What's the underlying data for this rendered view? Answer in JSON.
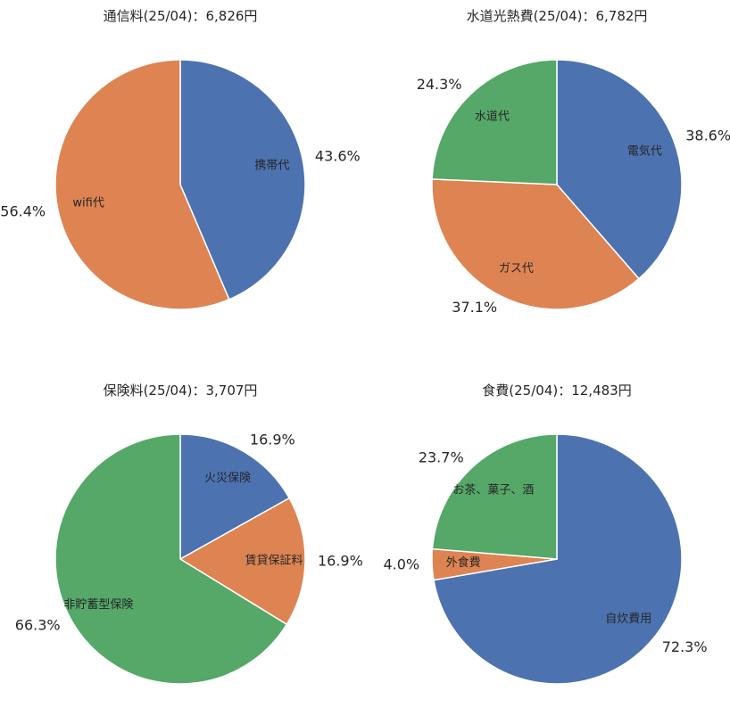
{
  "chart_data": [
    {
      "type": "pie",
      "title": "通信料(25/04)：6,826円",
      "categories": [
        "携帯代",
        "wifi代"
      ],
      "values": [
        43.6,
        56.4
      ],
      "percent_labels": [
        "43.6%",
        "56.4%"
      ],
      "colors": [
        "#4c72b0",
        "#dd8452"
      ]
    },
    {
      "type": "pie",
      "title": "水道光熱費(25/04)：6,782円",
      "categories": [
        "電気代",
        "ガス代",
        "水道代"
      ],
      "values": [
        38.6,
        37.1,
        24.3
      ],
      "percent_labels": [
        "38.6%",
        "37.1%",
        "24.3%"
      ],
      "colors": [
        "#4c72b0",
        "#dd8452",
        "#55a868"
      ]
    },
    {
      "type": "pie",
      "title": "保険料(25/04)：3,707円",
      "categories": [
        "火災保険",
        "賃貸保証料",
        "非貯蓄型保険"
      ],
      "values": [
        16.9,
        16.9,
        66.3
      ],
      "percent_labels": [
        "16.9%",
        "16.9%",
        "66.3%"
      ],
      "colors": [
        "#4c72b0",
        "#dd8452",
        "#55a868"
      ]
    },
    {
      "type": "pie",
      "title": "食費(25/04)：12,483円",
      "categories": [
        "自炊費用",
        "外食費",
        "お茶、菓子、酒"
      ],
      "values": [
        72.3,
        4.0,
        23.7
      ],
      "percent_labels": [
        "72.3%",
        "4.0%",
        "23.7%"
      ],
      "colors": [
        "#4c72b0",
        "#dd8452",
        "#55a868"
      ]
    }
  ]
}
